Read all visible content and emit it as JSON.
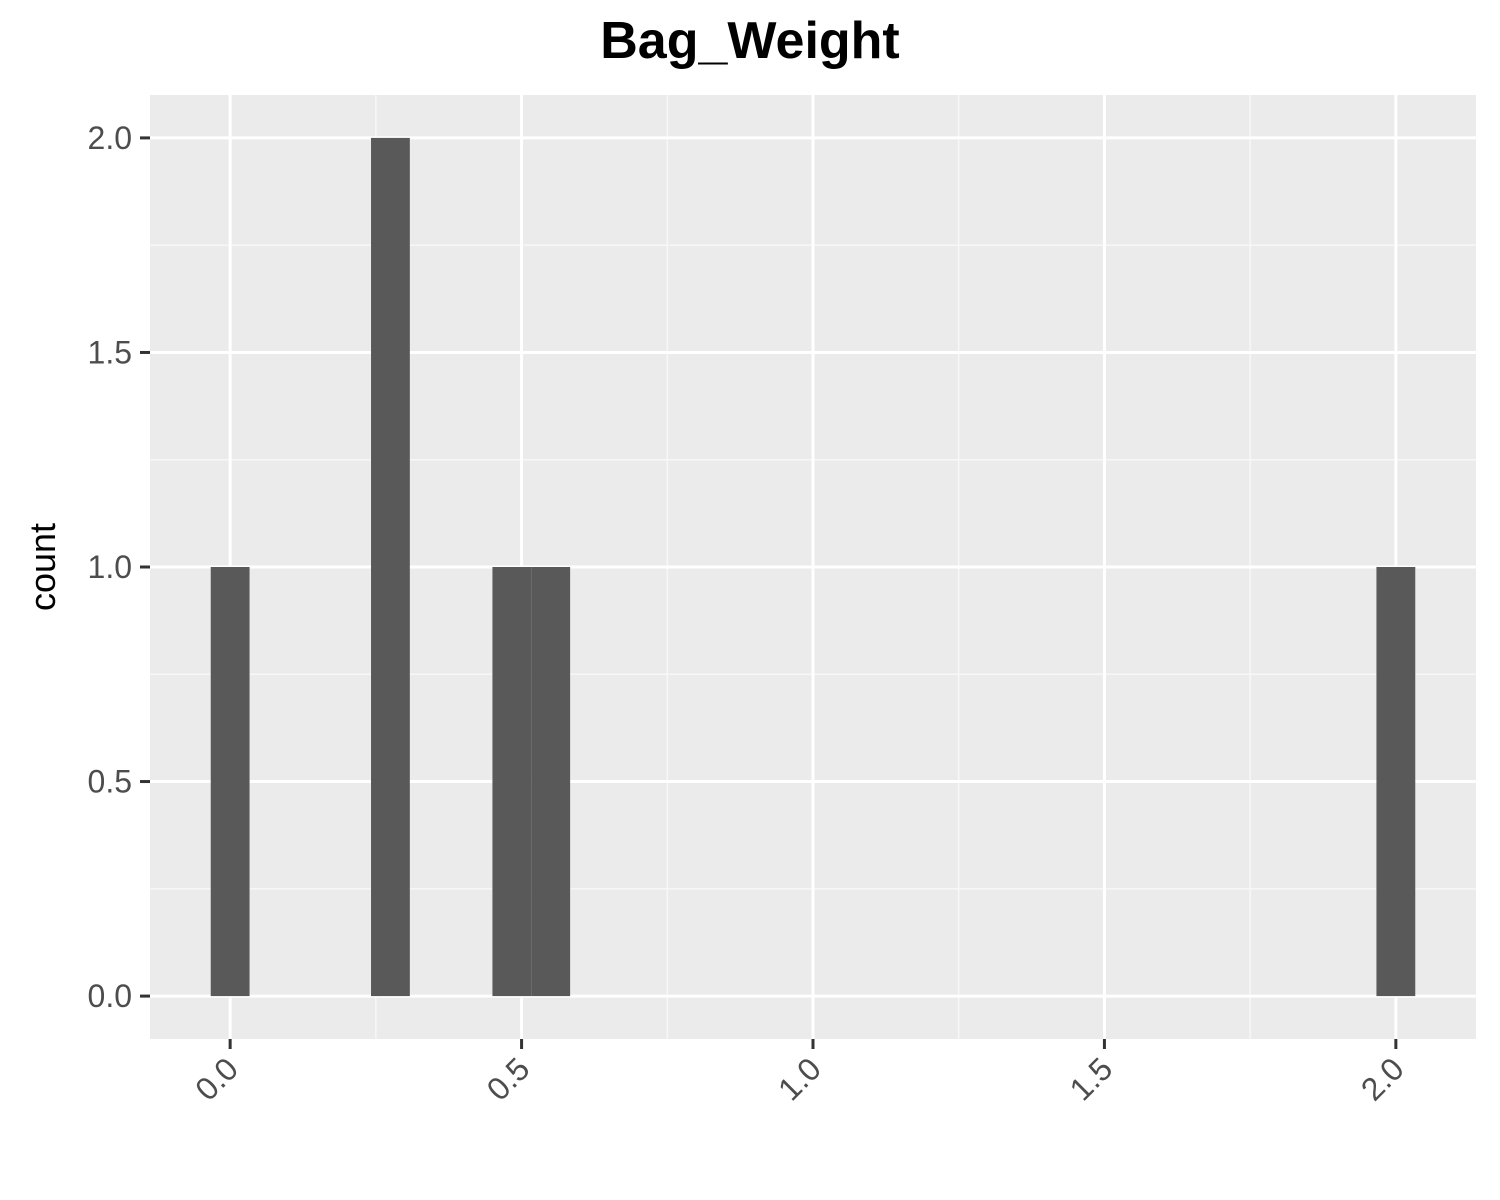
{
  "chart_data": {
    "type": "bar",
    "title": "Bag_Weight",
    "xlabel": "",
    "ylabel": "count",
    "bins": [
      {
        "x_start": -0.0333,
        "x_end": 0.0333,
        "count": 1
      },
      {
        "x_start": 0.2417,
        "x_end": 0.3083,
        "count": 2
      },
      {
        "x_start": 0.45,
        "x_end": 0.5167,
        "count": 1
      },
      {
        "x_start": 0.5167,
        "x_end": 0.5833,
        "count": 1
      },
      {
        "x_start": 1.9667,
        "x_end": 2.0333,
        "count": 1
      }
    ],
    "x_ticks": [
      "0.0",
      "0.5",
      "1.0",
      "1.5",
      "2.0"
    ],
    "x_tick_values": [
      0.0,
      0.5,
      1.0,
      1.5,
      2.0
    ],
    "y_ticks": [
      "0.0",
      "0.5",
      "1.0",
      "1.5",
      "2.0"
    ],
    "y_tick_values": [
      0.0,
      0.5,
      1.0,
      1.5,
      2.0
    ],
    "xlim": [
      -0.1375,
      2.1375
    ],
    "ylim": [
      -0.1,
      2.1
    ],
    "grid": true,
    "x_tick_label_rotation": "45 degrees",
    "colors": {
      "panel_background": "#ebebeb",
      "grid_major": "#ffffff",
      "grid_minor": "#f7f7f7",
      "bar_fill": "#595959",
      "tick_text": "#4d4d4d",
      "title_text": "#000000"
    }
  }
}
